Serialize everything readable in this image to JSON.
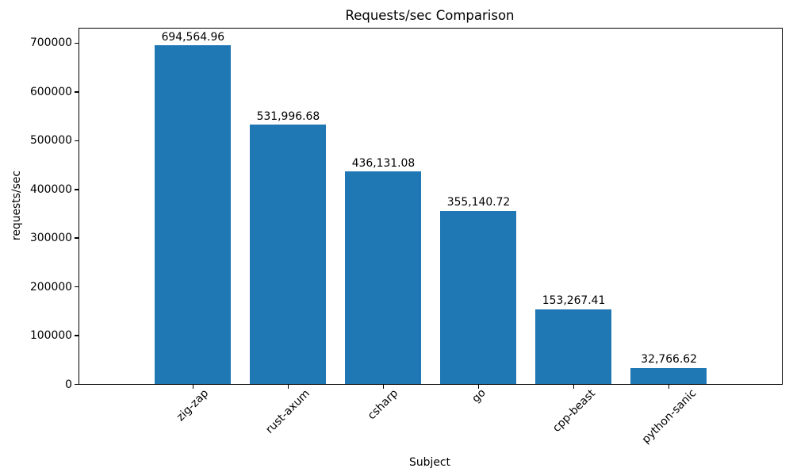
{
  "chart_data": {
    "type": "bar",
    "title": "Requests/sec Comparison",
    "xlabel": "Subject",
    "ylabel": "requests/sec",
    "categories": [
      "zig-zap",
      "rust-axum",
      "csharp",
      "go",
      "cpp-beast",
      "python-sanic"
    ],
    "values": [
      694564.96,
      531996.68,
      436131.08,
      355140.72,
      153267.41,
      32766.62
    ],
    "value_labels": [
      "694,564.96",
      "531,996.68",
      "436,131.08",
      "355,140.72",
      "153,267.41",
      "32,766.62"
    ],
    "ytick_values": [
      0,
      100000,
      200000,
      300000,
      400000,
      500000,
      600000,
      700000
    ],
    "ytick_labels": [
      "0",
      "100000",
      "200000",
      "300000",
      "400000",
      "500000",
      "600000",
      "700000"
    ],
    "ylim": [
      0,
      729293
    ],
    "xtick_rotation": 45,
    "grid": false,
    "legend": false,
    "bar_color": "#1f77b4",
    "text_color": "#000000",
    "background_color": "#ffffff"
  }
}
